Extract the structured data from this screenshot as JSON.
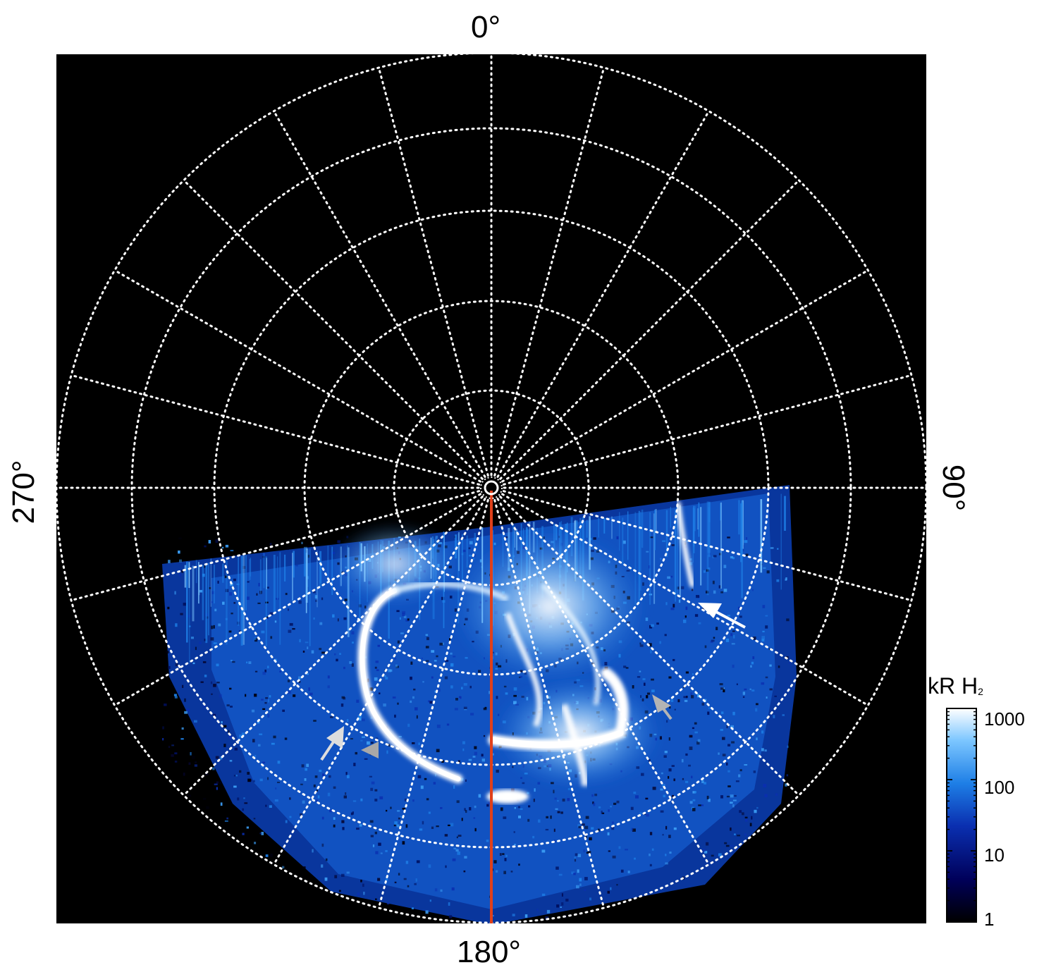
{
  "labels": {
    "top": "0°",
    "bottom": "180°",
    "left": "270°",
    "right": "90°"
  },
  "colorbar": {
    "title_main": "kR H",
    "title_sub": "2",
    "ticks": [
      "1000",
      "100",
      "10",
      "1"
    ],
    "colors": [
      "#000000",
      "#00005a",
      "#0a2fb0",
      "#1e7fe6",
      "#7cc6ff",
      "#ffffff"
    ]
  },
  "colors": {
    "background": "#000000",
    "grid": "#ffffff",
    "meridian": "#e0401a",
    "arrow_white": "#ffffff",
    "arrow_gray": "#b4b4b4"
  },
  "icons": {
    "arrows": [
      "arrow-white-icon",
      "arrow-white-icon",
      "arrow-gray-icon",
      "arrow-gray-icon"
    ]
  }
}
